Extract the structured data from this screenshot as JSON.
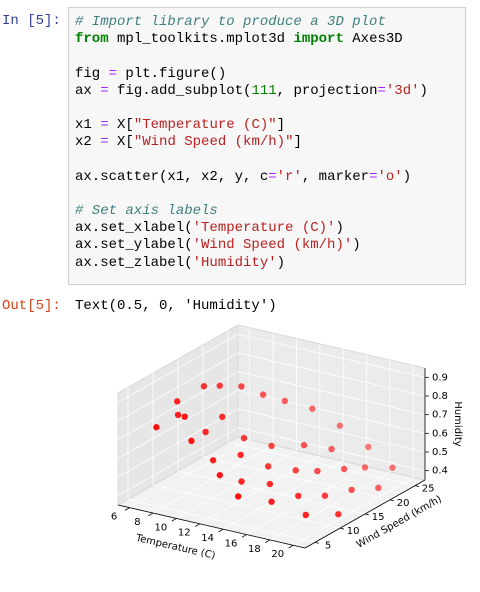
{
  "cell": {
    "prompt": "In [5]:",
    "lines": [
      [
        {
          "text": "# Import library to produce a 3D plot",
          "color": "#408080",
          "font_style": "italic"
        }
      ],
      [
        {
          "text": "from",
          "color": "#008000",
          "font_weight": "bold"
        },
        {
          "text": " mpl_toolkits.mplot3d ",
          "color": "#000000"
        },
        {
          "text": "import",
          "color": "#008000",
          "font_weight": "bold"
        },
        {
          "text": " Axes3D",
          "color": "#000000"
        }
      ],
      [],
      [
        {
          "text": "fig ",
          "color": "#000000"
        },
        {
          "text": "=",
          "color": "#AA22FF"
        },
        {
          "text": " plt.figure()",
          "color": "#000000"
        }
      ],
      [
        {
          "text": "ax ",
          "color": "#000000"
        },
        {
          "text": "=",
          "color": "#AA22FF"
        },
        {
          "text": " fig.add_subplot(",
          "color": "#000000"
        },
        {
          "text": "111",
          "color": "#008000"
        },
        {
          "text": ", projection",
          "color": "#000000"
        },
        {
          "text": "=",
          "color": "#AA22FF"
        },
        {
          "text": "'3d'",
          "color": "#BA2121"
        },
        {
          "text": ")",
          "color": "#000000"
        }
      ],
      [],
      [
        {
          "text": "x1 ",
          "color": "#000000"
        },
        {
          "text": "=",
          "color": "#AA22FF"
        },
        {
          "text": " X[",
          "color": "#000000"
        },
        {
          "text": "\"Temperature (C)\"",
          "color": "#BA2121"
        },
        {
          "text": "]",
          "color": "#000000"
        }
      ],
      [
        {
          "text": "x2 ",
          "color": "#000000"
        },
        {
          "text": "=",
          "color": "#AA22FF"
        },
        {
          "text": " X[",
          "color": "#000000"
        },
        {
          "text": "\"Wind Speed (km/h)\"",
          "color": "#BA2121"
        },
        {
          "text": "]",
          "color": "#000000"
        }
      ],
      [],
      [
        {
          "text": "ax.scatter(x1, x2, y, c",
          "color": "#000000"
        },
        {
          "text": "=",
          "color": "#AA22FF"
        },
        {
          "text": "'r'",
          "color": "#BA2121"
        },
        {
          "text": ", marker",
          "color": "#000000"
        },
        {
          "text": "=",
          "color": "#AA22FF"
        },
        {
          "text": "'o'",
          "color": "#BA2121"
        },
        {
          "text": ")",
          "color": "#000000"
        }
      ],
      [],
      [
        {
          "text": "# Set axis labels",
          "color": "#408080",
          "font_style": "italic"
        }
      ],
      [
        {
          "text": "ax.set_xlabel(",
          "color": "#000000"
        },
        {
          "text": "'Temperature (C)'",
          "color": "#BA2121"
        },
        {
          "text": ")",
          "color": "#000000"
        }
      ],
      [
        {
          "text": "ax.set_ylabel(",
          "color": "#000000"
        },
        {
          "text": "'Wind Speed (km/h)'",
          "color": "#BA2121"
        },
        {
          "text": ")",
          "color": "#000000"
        }
      ],
      [
        {
          "text": "ax.set_zlabel(",
          "color": "#000000"
        },
        {
          "text": "'Humidity'",
          "color": "#BA2121"
        },
        {
          "text": ")",
          "color": "#000000"
        }
      ]
    ]
  },
  "output": {
    "prompt": "Out[5]:",
    "text": "Text(0.5, 0, 'Humidity')"
  },
  "plot": {
    "type": "scatter3d",
    "xlabel": "Temperature (C)",
    "ylabel": "Wind Speed (km/h)",
    "zlabel": "Humidity",
    "color": "#ff0000",
    "x": [
      7,
      7.5,
      8,
      8.5,
      9,
      9,
      9.5,
      10,
      10,
      10.5,
      11,
      11,
      11.5,
      12,
      12,
      12.5,
      13,
      13,
      13.5,
      14,
      14,
      14.5,
      15,
      15,
      15.5,
      16,
      16,
      16.5,
      17,
      17,
      17.5,
      18,
      18,
      18.5,
      19,
      19.5,
      20,
      20
    ],
    "y": [
      6,
      9,
      8,
      12,
      7,
      14,
      10,
      6,
      16,
      11,
      8,
      18,
      13,
      7,
      20,
      10,
      15,
      9,
      22,
      12,
      6,
      18,
      10,
      24,
      14,
      8,
      20,
      16,
      11,
      25,
      19,
      14,
      22,
      9,
      17,
      24,
      20,
      12
    ],
    "z": [
      0.75,
      0.85,
      0.8,
      0.9,
      0.82,
      0.88,
      0.7,
      0.72,
      0.86,
      0.78,
      0.6,
      0.8,
      0.65,
      0.55,
      0.75,
      0.62,
      0.6,
      0.5,
      0.7,
      0.55,
      0.48,
      0.58,
      0.5,
      0.6,
      0.52,
      0.45,
      0.55,
      0.5,
      0.45,
      0.5,
      0.48,
      0.42,
      0.45,
      0.4,
      0.42,
      0.44,
      0.4,
      0.38
    ],
    "xlim": [
      5,
      21
    ],
    "ylim": [
      3,
      27
    ],
    "zlim": [
      0.35,
      0.95
    ],
    "xticks": [
      6,
      8,
      10,
      12,
      14,
      16,
      18,
      20
    ],
    "yticks": [
      5,
      10,
      15,
      20,
      25
    ],
    "zticks": [
      0.4,
      0.5,
      0.6,
      0.7,
      0.8,
      0.9
    ]
  }
}
